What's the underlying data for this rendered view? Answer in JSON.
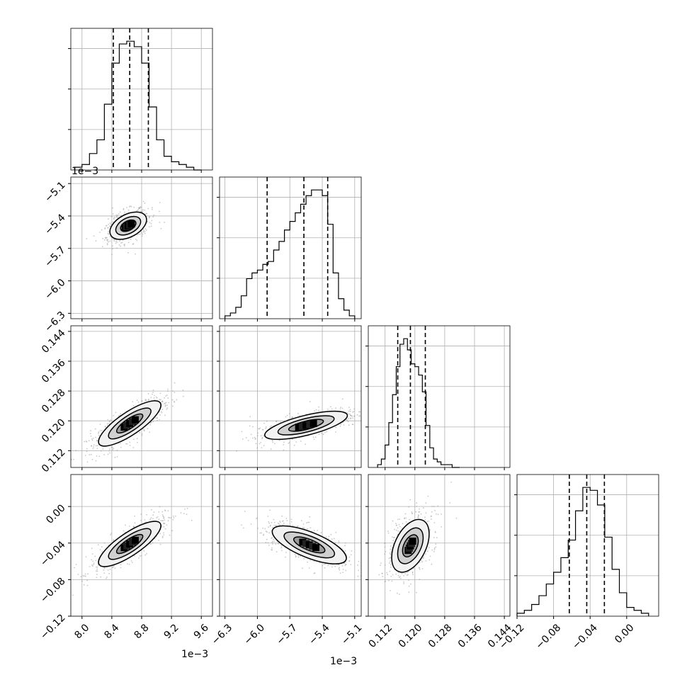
{
  "chart_data": {
    "type": "corner",
    "grid": true,
    "parameters": [
      {
        "name": "",
        "axis_range": [
          7.85,
          9.75
        ],
        "tick_values": [
          8.0,
          8.4,
          8.8,
          9.2,
          9.6
        ],
        "tick_labels": [
          "8.0",
          "8.4",
          "8.8",
          "9.2",
          "9.6"
        ],
        "offset_label": "1e−3"
      },
      {
        "name": "",
        "axis_range": [
          -6.35,
          -5.04
        ],
        "tick_values": [
          -6.3,
          -6.0,
          -5.7,
          -5.4,
          -5.1
        ],
        "tick_labels": [
          "−6.3",
          "−6.0",
          "−5.7",
          "−5.4",
          "−5.1"
        ],
        "offset_label": "1e−3"
      },
      {
        "name": "",
        "axis_range": [
          0.1075,
          0.1455
        ],
        "tick_values": [
          0.112,
          0.12,
          0.128,
          0.136,
          0.144
        ],
        "tick_labels": [
          "0.112",
          "0.120",
          "0.128",
          "0.136",
          "0.144"
        ],
        "offset_label": ""
      },
      {
        "name": "",
        "axis_range": [
          -0.12,
          0.035
        ],
        "tick_values": [
          -0.12,
          -0.08,
          -0.04,
          0.0
        ],
        "tick_labels": [
          "−0.12",
          "−0.08",
          "−0.04",
          "0.00"
        ],
        "offset_label": ""
      }
    ],
    "histograms": [
      {
        "param": 0,
        "quantiles": [
          8.42,
          8.64,
          8.89
        ],
        "bin_edges": [
          7.9,
          8.0,
          8.1,
          8.2,
          8.3,
          8.4,
          8.5,
          8.6,
          8.7,
          8.8,
          8.9,
          9.0,
          9.1,
          9.2,
          9.3,
          9.4,
          9.5,
          9.6
        ],
        "counts": [
          1,
          2,
          6,
          11,
          24,
          39,
          46,
          47,
          45,
          39,
          23,
          11,
          5,
          3,
          2,
          1,
          0
        ]
      },
      {
        "param": 1,
        "quantiles": [
          -5.91,
          -5.57,
          -5.35
        ],
        "bin_edges": [
          -6.3,
          -6.25,
          -6.2,
          -6.15,
          -6.1,
          -6.05,
          -6.0,
          -5.95,
          -5.9,
          -5.85,
          -5.8,
          -5.75,
          -5.7,
          -5.65,
          -5.6,
          -5.55,
          -5.5,
          -5.45,
          -5.4,
          -5.35,
          -5.3,
          -5.25,
          -5.2,
          -5.15,
          -5.1
        ],
        "counts": [
          1,
          2,
          4,
          8,
          14,
          16,
          17,
          19,
          20,
          24,
          27,
          31,
          34,
          37,
          40,
          43,
          45,
          45,
          43,
          33,
          16,
          7,
          3,
          1
        ]
      },
      {
        "param": 2,
        "quantiles": [
          0.1154,
          0.1188,
          0.1228
        ],
        "bin_edges": [
          0.11,
          0.111,
          0.112,
          0.113,
          0.114,
          0.115,
          0.116,
          0.117,
          0.118,
          0.119,
          0.12,
          0.121,
          0.122,
          0.123,
          0.124,
          0.125,
          0.126,
          0.127,
          0.128,
          0.129,
          0.13,
          0.131,
          0.132
        ],
        "counts": [
          1,
          3,
          8,
          16,
          26,
          36,
          44,
          46,
          42,
          37,
          36,
          33,
          27,
          15,
          7,
          3,
          2,
          1,
          1,
          1,
          0,
          0
        ]
      },
      {
        "param": 3,
        "quantiles": [
          -0.0628,
          -0.0437,
          -0.0244
        ],
        "bin_edges": [
          -0.12,
          -0.112,
          -0.104,
          -0.096,
          -0.088,
          -0.08,
          -0.072,
          -0.064,
          -0.056,
          -0.048,
          -0.04,
          -0.032,
          -0.024,
          -0.016,
          -0.008,
          0.0,
          0.008,
          0.016,
          0.024
        ],
        "counts": [
          1,
          2,
          4,
          7,
          11,
          15,
          20,
          26,
          36,
          44,
          43,
          38,
          27,
          16,
          8,
          3,
          2,
          1
        ]
      }
    ],
    "pairs": [
      {
        "x_param": 0,
        "y_param": 1,
        "center": [
          8.62,
          -5.49
        ],
        "rx": 0.14,
        "ry": 0.08,
        "angle_deg": 28,
        "npoints": 600
      },
      {
        "x_param": 0,
        "y_param": 2,
        "center": [
          8.64,
          0.1193
        ],
        "rx": 0.26,
        "ry": 0.08,
        "angle_deg": 34,
        "npoints": 600
      },
      {
        "x_param": 0,
        "y_param": 3,
        "center": [
          8.64,
          -0.041
        ],
        "rx": 0.26,
        "ry": 0.08,
        "angle_deg": 34,
        "npoints": 600
      },
      {
        "x_param": 1,
        "y_param": 2,
        "center": [
          -5.55,
          0.1188
        ],
        "rx": 0.3,
        "ry": 0.07,
        "angle_deg": 14,
        "npoints": 600
      },
      {
        "x_param": 1,
        "y_param": 3,
        "center": [
          -5.52,
          -0.042
        ],
        "rx": 0.28,
        "ry": 0.09,
        "angle_deg": -22,
        "npoints": 600
      },
      {
        "x_param": 2,
        "y_param": 3,
        "center": [
          0.1188,
          -0.043
        ],
        "rx": 0.2,
        "ry": 0.11,
        "angle_deg": 64,
        "npoints": 600
      }
    ]
  }
}
